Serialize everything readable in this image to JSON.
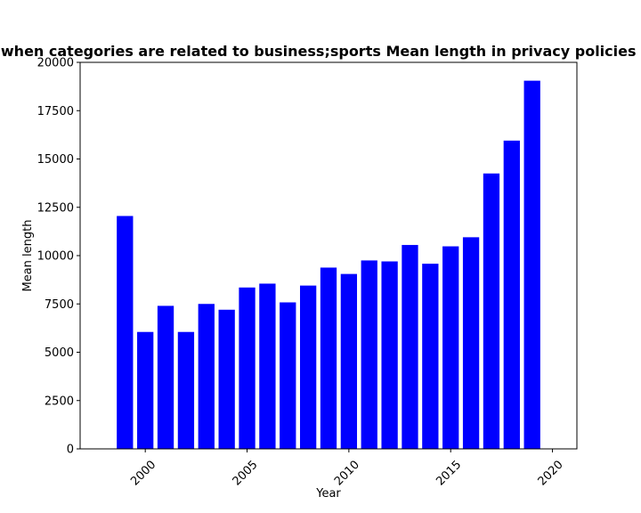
{
  "chart_data": {
    "type": "bar",
    "title": "Apps when categories are related to business;sports Mean length in privacy policies by year",
    "xlabel": "Year",
    "ylabel": "Mean length",
    "bar_color": "#0000ff",
    "x": [
      1999,
      2000,
      2001,
      2002,
      2003,
      2004,
      2005,
      2006,
      2007,
      2008,
      2009,
      2010,
      2011,
      2012,
      2013,
      2014,
      2015,
      2016,
      2017,
      2018,
      2019
    ],
    "values": [
      12050,
      6050,
      7400,
      6050,
      7500,
      7200,
      8350,
      8550,
      7580,
      8450,
      9380,
      9050,
      9750,
      9700,
      10550,
      9580,
      10480,
      10950,
      14250,
      15950,
      19050
    ],
    "xlim": [
      1996.8,
      2021.2
    ],
    "ylim": [
      0,
      20000
    ],
    "xticks": [
      2000,
      2005,
      2010,
      2015,
      2020
    ],
    "yticks": [
      0,
      2500,
      5000,
      7500,
      10000,
      12500,
      15000,
      17500,
      20000
    ],
    "grid": false,
    "legend": "none"
  }
}
